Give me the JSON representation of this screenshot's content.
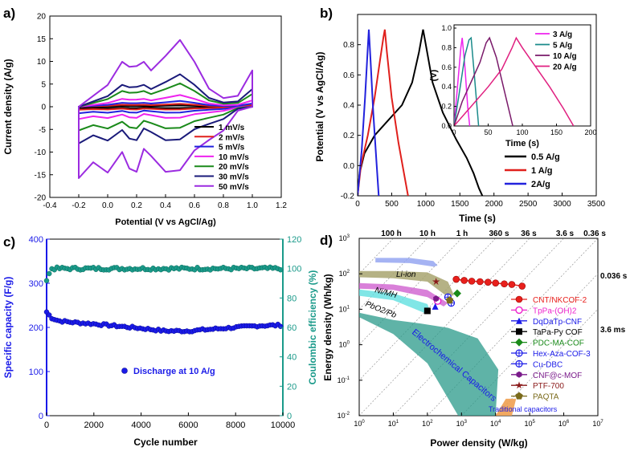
{
  "panels": {
    "a": {
      "letter": "a)",
      "xlabel": "Potential (V vs AgCl/Ag)",
      "ylabel": "Current density (A/g)",
      "xticks": [
        "-0.4",
        "-0.2",
        "0.0",
        "0.2",
        "0.4",
        "0.6",
        "0.8",
        "1.0",
        "1.2"
      ],
      "yticks": [
        "20",
        "15",
        "10",
        "5",
        "0",
        "-5",
        "-10",
        "-15",
        "-20"
      ],
      "legend": [
        "1 mV/s",
        "2 mV/s",
        "5 mV/s",
        "10 mV/s",
        "20 mV/s",
        "30 mV/s",
        "50 mV/s"
      ]
    },
    "b": {
      "letter": "b)",
      "xlabel": "Time (s)",
      "ylabel": "Potential (V vs AgCl/Ag)",
      "xticks": [
        "0",
        "500",
        "1000",
        "1500",
        "2000",
        "2500",
        "3000",
        "3500"
      ],
      "yticks": [
        "-0.2",
        "0.0",
        "0.2",
        "0.4",
        "0.6",
        "0.8"
      ],
      "legend": [
        "0.5 A/g",
        "1 A/g",
        "2A/g"
      ],
      "inset": {
        "xlabel": "Time (s)",
        "ylabel": "(V)",
        "xticks": [
          "0",
          "50",
          "100",
          "150",
          "200"
        ],
        "yticks": [
          "0.0",
          "0.2",
          "0.4",
          "0.6",
          "0.8",
          "1.0"
        ],
        "legend": [
          "3 A/g",
          "5 A/g",
          "10 A/g",
          "20 A/g"
        ]
      }
    },
    "c": {
      "letter": "c)",
      "xlabel": "Cycle number",
      "ylabel_left": "Specific capacity (F/g)",
      "ylabel_right": "Coulombic efficiency (%)",
      "xticks": [
        "0",
        "2000",
        "4000",
        "6000",
        "8000",
        "10000"
      ],
      "yticks_left": [
        "400",
        "300",
        "200",
        "100",
        "0"
      ],
      "yticks_right": [
        "120",
        "100",
        "80",
        "60",
        "40",
        "20",
        "0"
      ],
      "legend": "Discharge at 10 A/g"
    },
    "d": {
      "letter": "d)",
      "xlabel": "Power density (W/kg)",
      "ylabel": "Energy density (Wh/kg)",
      "time_top": [
        "100 h",
        "10 h",
        "1 h",
        "360 s",
        "36 s",
        "3.6 s",
        "0.36 s"
      ],
      "time_right": [
        "0.036 s",
        "3.6 ms"
      ],
      "region_labels": [
        "Li-ion",
        "Ni/MH",
        "PbO2/Pb",
        "Electrochemical Capacitors",
        "Traditional capacitors"
      ],
      "legend": [
        "CNT/NKCOF-2",
        "TpPa-(OH)2",
        "DqDaTp-CNF",
        "TaPa-Py COF",
        "PDC-MA-COF",
        "Hex-Aza-COF-3",
        "Cu-DBC",
        "CNF@c-MOF",
        "PTF-700",
        "PAQTA"
      ]
    }
  },
  "chart_data": [
    {
      "panel": "a",
      "type": "line",
      "xlabel": "Potential (V vs AgCl/Ag)",
      "ylabel": "Current density (A/g)",
      "xlim": [
        -0.4,
        1.2
      ],
      "ylim": [
        -20,
        20
      ],
      "series_shape": {
        "x": [
          -0.2,
          0.0,
          0.1,
          0.15,
          0.2,
          0.25,
          0.3,
          0.4,
          0.5,
          0.6,
          0.7,
          0.8,
          0.9,
          1.0,
          1.0,
          0.9,
          0.8,
          0.7,
          0.6,
          0.5,
          0.4,
          0.3,
          0.25,
          0.2,
          0.15,
          0.1,
          0.0,
          -0.1,
          -0.2
        ],
        "y": [
          0.0,
          0.3,
          0.62,
          0.55,
          0.56,
          0.62,
          0.5,
          0.7,
          0.92,
          0.62,
          0.25,
          0.12,
          0.15,
          0.5,
          0.0,
          -0.05,
          -0.3,
          -0.42,
          -0.55,
          -0.8,
          -0.82,
          -0.62,
          -0.53,
          -0.82,
          -0.78,
          -0.57,
          -0.83,
          -0.7,
          -0.9
        ]
      },
      "series": [
        {
          "name": "1 mV/s",
          "color": "#000000",
          "up": 0.3,
          "down": 0.35
        },
        {
          "name": "2 mV/s",
          "color": "#e0201c",
          "up": 0.7,
          "down": 0.75
        },
        {
          "name": "5 mV/s",
          "color": "#2222dd",
          "up": 1.4,
          "down": 1.6
        },
        {
          "name": "10 mV/s",
          "color": "#ee22ee",
          "up": 2.8,
          "down": 3.0
        },
        {
          "name": "20 mV/s",
          "color": "#1a8a1a",
          "up": 5.6,
          "down": 5.8
        },
        {
          "name": "30 mV/s",
          "color": "#1a1a7a",
          "up": 7.8,
          "down": 9.0
        },
        {
          "name": "50 mV/s",
          "color": "#9b2be0",
          "up": 16.0,
          "down": 17.5
        }
      ]
    },
    {
      "panel": "b",
      "type": "line",
      "xlabel": "Time (s)",
      "ylabel": "Potential (V vs AgCl/Ag)",
      "xlim": [
        0,
        3500
      ],
      "ylim": [
        -0.2,
        1.0
      ],
      "series": [
        {
          "name": "0.5 A/g",
          "color": "#000000",
          "x": [
            0,
            30,
            100,
            250,
            450,
            650,
            800,
            900,
            960,
            1000,
            1100,
            1250,
            1450,
            1600,
            1700,
            1780,
            1830
          ],
          "y": [
            -0.2,
            -0.05,
            0.08,
            0.2,
            0.3,
            0.4,
            0.55,
            0.75,
            0.9,
            0.8,
            0.55,
            0.35,
            0.17,
            0.05,
            -0.05,
            -0.15,
            -0.2
          ]
        },
        {
          "name": "1 A/g",
          "color": "#e0201c",
          "x": [
            0,
            50,
            150,
            250,
            330,
            380,
            400,
            430,
            500,
            600,
            680,
            740
          ],
          "y": [
            -0.2,
            0.0,
            0.2,
            0.45,
            0.7,
            0.85,
            0.9,
            0.75,
            0.45,
            0.15,
            -0.05,
            -0.2
          ]
        },
        {
          "name": "2A/g",
          "color": "#2222dd",
          "x": [
            0,
            60,
            110,
            150,
            165,
            190,
            230,
            280,
            310
          ],
          "y": [
            -0.2,
            0.1,
            0.45,
            0.78,
            0.9,
            0.7,
            0.35,
            0.0,
            -0.2
          ]
        }
      ],
      "inset": {
        "type": "line",
        "xlabel": "Time (s)",
        "ylabel": "(V)",
        "xlim": [
          0,
          200
        ],
        "ylim": [
          0,
          1.0
        ],
        "series": [
          {
            "name": "3 A/g",
            "color": "#ee22ee",
            "x": [
              0,
              5,
              10,
              12,
              16,
              20,
              23
            ],
            "y": [
              0,
              0.4,
              0.8,
              0.9,
              0.6,
              0.2,
              0
            ]
          },
          {
            "name": "5 A/g",
            "color": "#1a8a8a",
            "x": [
              0,
              8,
              16,
              22,
              25,
              30,
              36
            ],
            "y": [
              0,
              0.35,
              0.72,
              0.88,
              0.9,
              0.5,
              0
            ]
          },
          {
            "name": "10 A/g",
            "color": "#7a1a6a",
            "x": [
              0,
              12,
              25,
              38,
              47,
              52,
              62,
              74,
              86
            ],
            "y": [
              0,
              0.25,
              0.45,
              0.65,
              0.85,
              0.9,
              0.7,
              0.35,
              0
            ]
          },
          {
            "name": "20 A/g",
            "color": "#e02080",
            "x": [
              0,
              25,
              50,
              70,
              85,
              91,
              100,
              120,
              140,
              160,
              175
            ],
            "y": [
              0,
              0.2,
              0.4,
              0.58,
              0.8,
              0.9,
              0.8,
              0.6,
              0.4,
              0.18,
              0
            ]
          }
        ]
      }
    },
    {
      "panel": "c",
      "type": "scatter",
      "xlabel": "Cycle number",
      "ylabel": "Specific capacity (F/g)",
      "ylabel_right": "Coulombic efficiency (%)",
      "xlim": [
        0,
        10000
      ],
      "ylim": [
        0,
        400
      ],
      "ylim_right": [
        0,
        120
      ],
      "series": [
        {
          "name": "Discharge at 10 A/g",
          "axis": "left",
          "color": "#1a1ae8",
          "x": [
            0,
            200,
            500,
            1000,
            2000,
            3000,
            4000,
            5000,
            6000,
            7000,
            8000,
            9000,
            10000
          ],
          "y": [
            235,
            222,
            215,
            212,
            208,
            203,
            198,
            192,
            192,
            196,
            200,
            204,
            205
          ]
        },
        {
          "name": "Coulombic efficiency",
          "axis": "right",
          "color": "#1a9a8a",
          "x": [
            0,
            200,
            10000
          ],
          "y": [
            92,
            100,
            100
          ]
        }
      ]
    },
    {
      "panel": "d",
      "type": "scatter",
      "xlabel": "Power density (W/kg)",
      "ylabel": "Energy density (Wh/kg)",
      "xscale": "log",
      "yscale": "log",
      "xlim": [
        1,
        10000000
      ],
      "ylim": [
        0.01,
        1000
      ],
      "series": [
        {
          "name": "CNT/NKCOF-2",
          "color": "#e8201c",
          "marker": "circle",
          "x": [
            700,
            1200,
            2000,
            3500,
            6000,
            10000,
            18000,
            30000,
            60000
          ],
          "y": [
            70,
            65,
            62,
            60,
            58,
            55,
            52,
            50,
            45
          ]
        },
        {
          "name": "TpPa-(OH)2",
          "color": "#ee22cc",
          "marker": "circle-open",
          "x": [
            200
          ],
          "y": [
            17
          ]
        },
        {
          "name": "DqDaTp-CNF",
          "color": "#1a1ae8",
          "marker": "triangle",
          "x": [
            170
          ],
          "y": [
            12
          ]
        },
        {
          "name": "TaPa-Py COF",
          "color": "#000000",
          "marker": "square",
          "x": [
            100
          ],
          "y": [
            9
          ]
        },
        {
          "name": "PDC-MA-COF",
          "color": "#1a8a1a",
          "marker": "diamond",
          "x": [
            750
          ],
          "y": [
            28
          ]
        },
        {
          "name": "Hex-Aza-COF-3",
          "color": "#1a1ae8",
          "marker": "circle-cross",
          "x": [
            400
          ],
          "y": [
            22
          ]
        },
        {
          "name": "Cu-DBC",
          "color": "#1a1ae8",
          "marker": "circle-plus",
          "x": [
            500
          ],
          "y": [
            15
          ]
        },
        {
          "name": "CNF@c-MOF",
          "color": "#7a1a8a",
          "marker": "hexagon",
          "x": [
            180
          ],
          "y": [
            20
          ]
        },
        {
          "name": "PTF-700",
          "color": "#8a1a1a",
          "marker": "star",
          "x": [
            180
          ],
          "y": [
            60
          ]
        },
        {
          "name": "PAQTA",
          "color": "#7a6a1a",
          "marker": "pentagon",
          "x": [
            450
          ],
          "y": [
            18
          ]
        }
      ]
    }
  ]
}
